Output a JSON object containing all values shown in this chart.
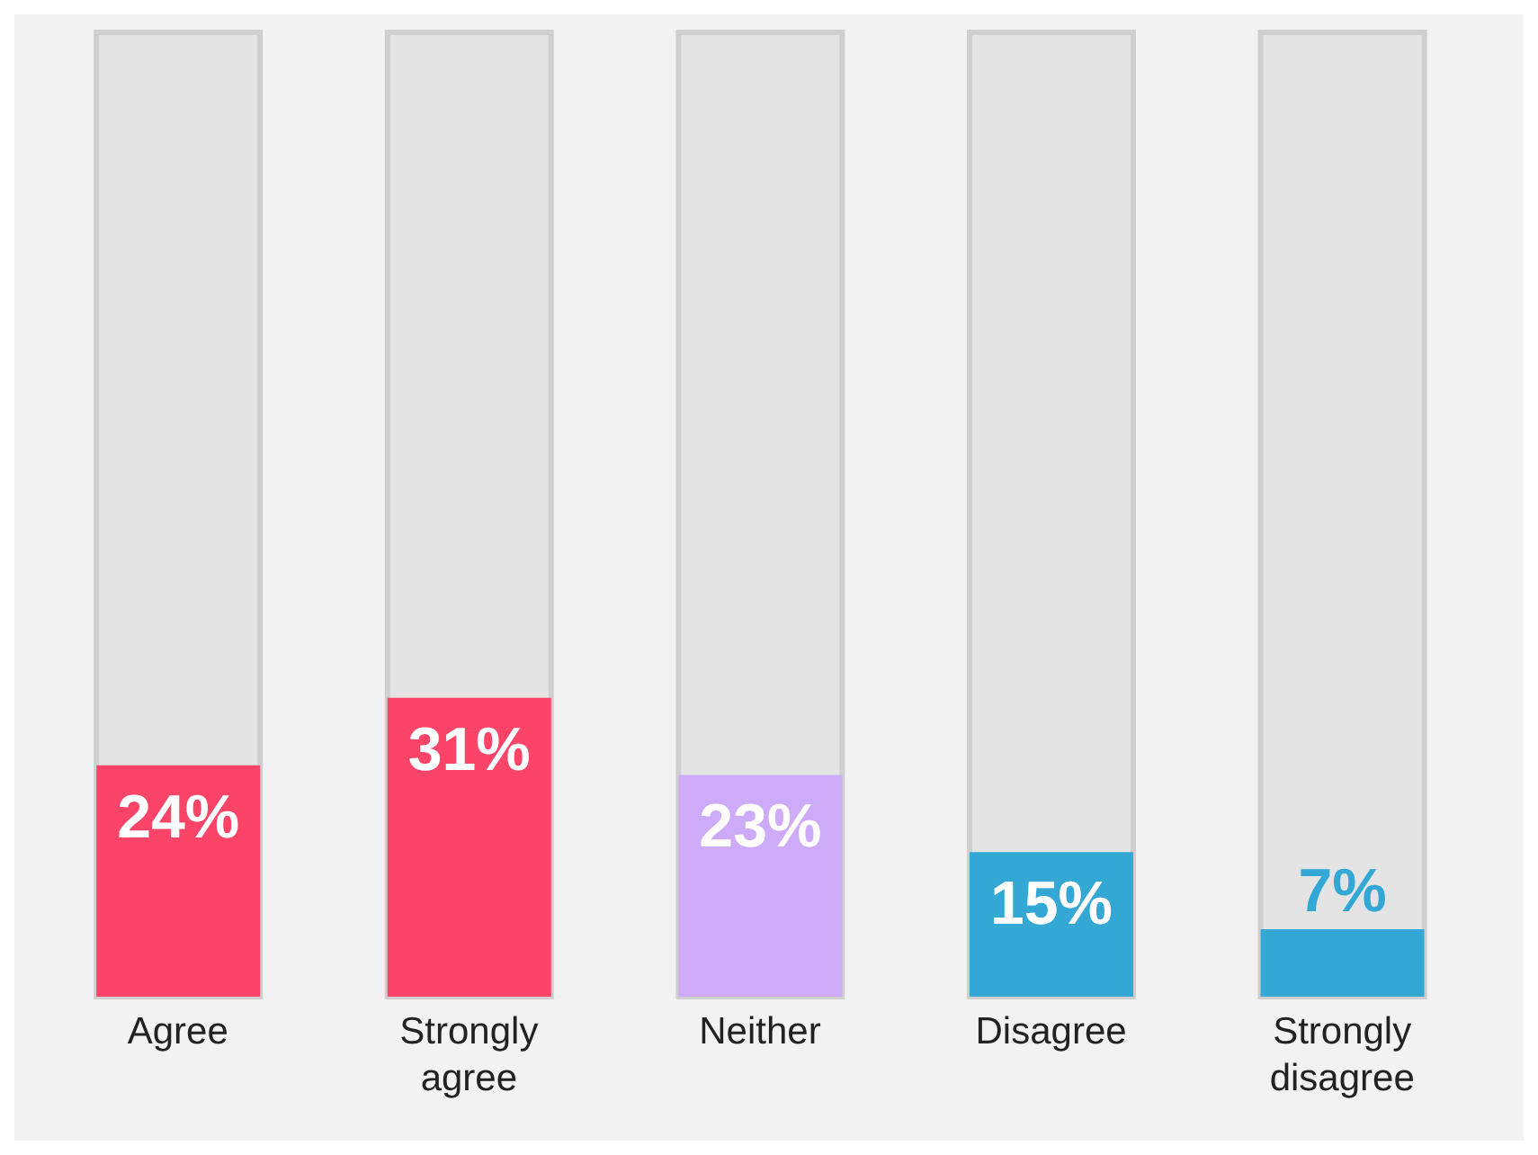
{
  "chart_data": {
    "type": "bar",
    "categories": [
      "Agree",
      "Strongly agree",
      "Neither",
      "Disagree",
      "Strongly disagree"
    ],
    "values": [
      24,
      31,
      23,
      15,
      7
    ],
    "colors": [
      "#fc4468",
      "#fc4468",
      "#cdabf9",
      "#34a8d5",
      "#34a8d5"
    ],
    "value_labels": [
      "24%",
      "31%",
      "23%",
      "15%",
      "7%"
    ],
    "ylim": [
      0,
      100
    ],
    "tick_labels": "x"
  }
}
